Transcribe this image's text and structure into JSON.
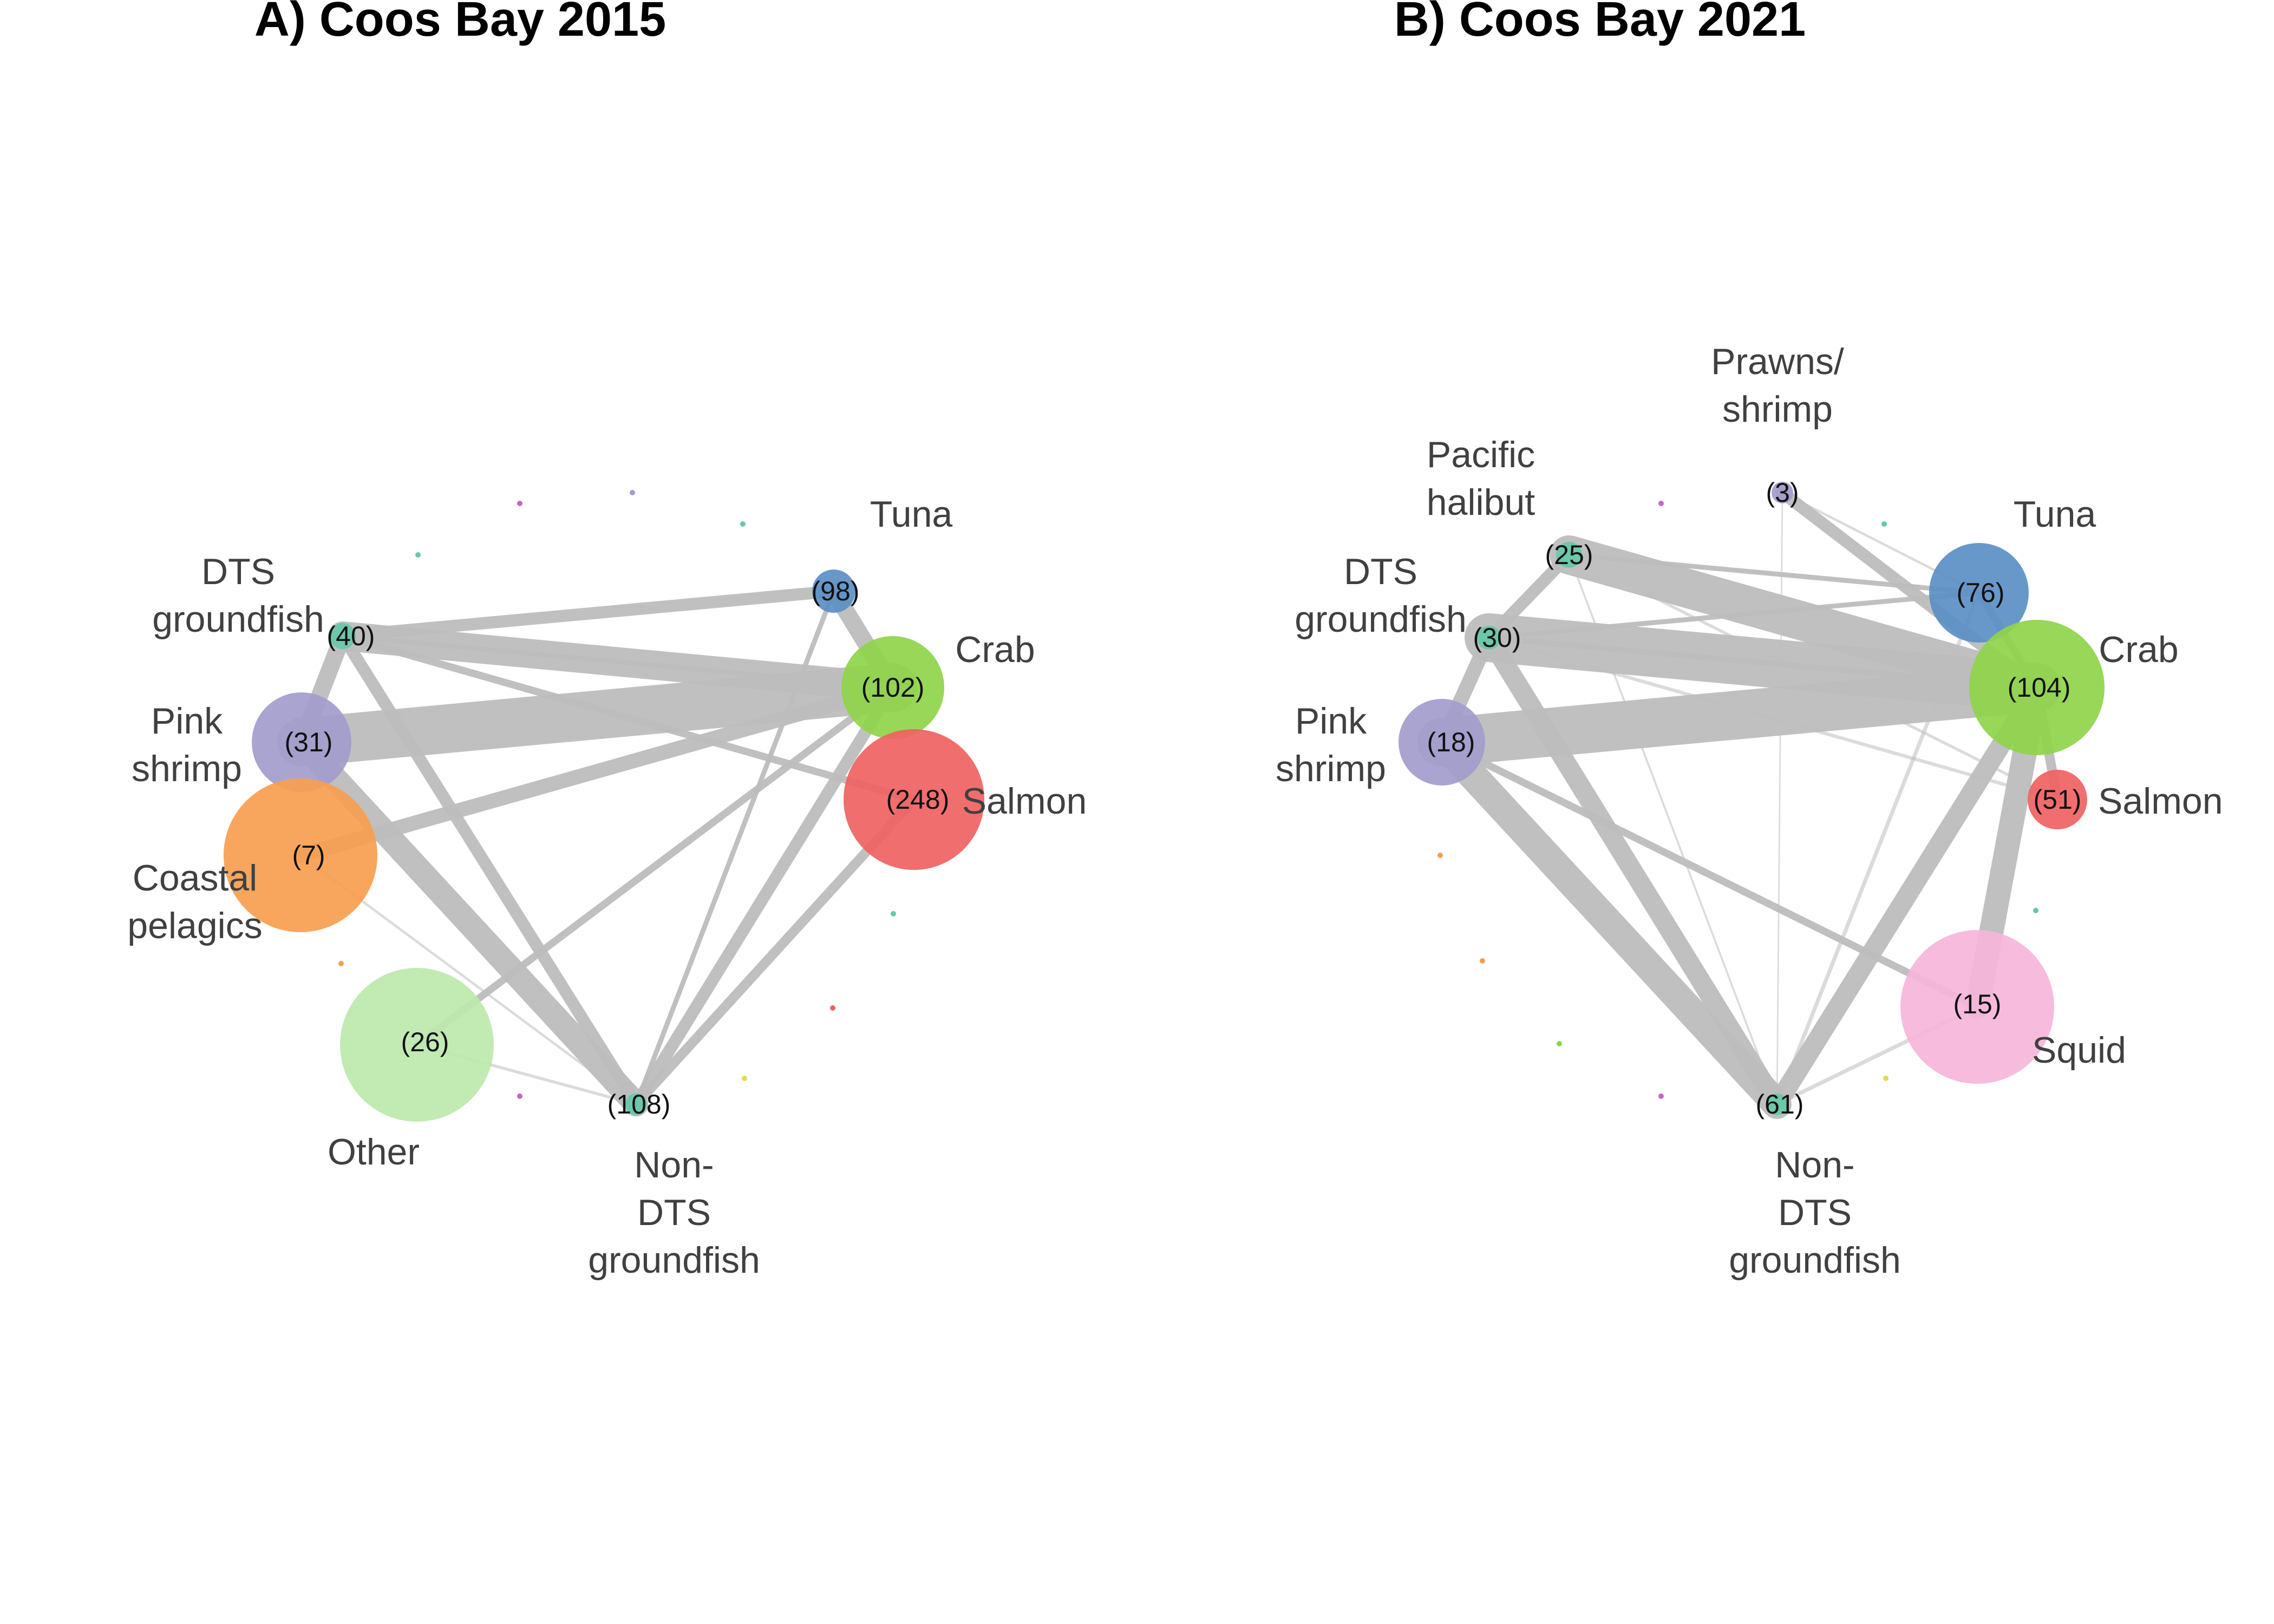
{
  "panels": [
    {
      "title": "A) Coos Bay 2015",
      "nodes": [
        {
          "id": "tuna",
          "label": [
            "Tuna"
          ],
          "value": "(98)",
          "color": "#5b8fc4"
        },
        {
          "id": "crab",
          "label": [
            "Crab"
          ],
          "value": "(102)",
          "color": "#8fd44a"
        },
        {
          "id": "salmon",
          "label": [
            "Salmon"
          ],
          "value": "(248)",
          "color": "#f06262"
        },
        {
          "id": "dts",
          "label": [
            "DTS",
            "groundfish"
          ],
          "value": "(40)",
          "color": "#66c8a8"
        },
        {
          "id": "pink",
          "label": [
            "Pink",
            "shrimp"
          ],
          "value": "(31)",
          "color": "#a39ccd"
        },
        {
          "id": "coastal",
          "label": [
            "Coastal",
            "pelagics"
          ],
          "value": "(7)",
          "color": "#f79e4f"
        },
        {
          "id": "other",
          "label": [
            "Other"
          ],
          "value": "(26)",
          "color": "#bde8ad"
        },
        {
          "id": "nondts",
          "label": [
            "Non-",
            "DTS",
            "groundfish"
          ],
          "value": "(108)",
          "color": "#66c8a8"
        }
      ],
      "edges": [
        {
          "source": "pink",
          "target": "crab",
          "weight": 10
        },
        {
          "source": "dts",
          "target": "crab",
          "weight": 6
        },
        {
          "source": "pink",
          "target": "nondts",
          "weight": 5
        },
        {
          "source": "tuna",
          "target": "crab",
          "weight": 3.5
        },
        {
          "source": "dts",
          "target": "pink",
          "weight": 3.5
        },
        {
          "source": "crab",
          "target": "coastal",
          "weight": 3
        },
        {
          "source": "dts",
          "target": "tuna",
          "weight": 2.5
        },
        {
          "source": "dts",
          "target": "nondts",
          "weight": 2.5
        },
        {
          "source": "crab",
          "target": "nondts",
          "weight": 2.5
        },
        {
          "source": "salmon",
          "target": "nondts",
          "weight": 2
        },
        {
          "source": "crab",
          "target": "other",
          "weight": 1.5
        },
        {
          "source": "dts",
          "target": "salmon",
          "weight": 1.5
        },
        {
          "source": "tuna",
          "target": "nondts",
          "weight": 1
        },
        {
          "source": "dts",
          "target": "crab",
          "weight": 1
        },
        {
          "source": "other",
          "target": "nondts",
          "weight": 0.6
        },
        {
          "source": "coastal",
          "target": "nondts",
          "weight": 0.5
        }
      ]
    },
    {
      "title": "B) Coos Bay 2021",
      "nodes": [
        {
          "id": "prawns",
          "label": [
            "Prawns/",
            "shrimp"
          ],
          "value": "(3)",
          "color": "#a39ccd"
        },
        {
          "id": "halibut",
          "label": [
            "Pacific",
            "halibut"
          ],
          "value": "(25)",
          "color": "#66c8a8"
        },
        {
          "id": "tuna",
          "label": [
            "Tuna"
          ],
          "value": "(76)",
          "color": "#5b8fc4"
        },
        {
          "id": "dts",
          "label": [
            "DTS",
            "groundfish"
          ],
          "value": "(30)",
          "color": "#66c8a8"
        },
        {
          "id": "crab",
          "label": [
            "Crab"
          ],
          "value": "(104)",
          "color": "#8fd44a"
        },
        {
          "id": "pink",
          "label": [
            "Pink",
            "shrimp"
          ],
          "value": "(18)",
          "color": "#a39ccd"
        },
        {
          "id": "salmon",
          "label": [
            "Salmon"
          ],
          "value": "(51)",
          "color": "#f06262"
        },
        {
          "id": "squid",
          "label": [
            "Squid"
          ],
          "value": "(15)",
          "color": "#f6b6da"
        },
        {
          "id": "nondts",
          "label": [
            "Non-",
            "DTS",
            "groundfish"
          ],
          "value": "(61)",
          "color": "#66c8a8"
        }
      ],
      "edges": [
        {
          "source": "pink",
          "target": "crab",
          "weight": 10
        },
        {
          "source": "dts",
          "target": "crab",
          "weight": 10
        },
        {
          "source": "halibut",
          "target": "crab",
          "weight": 8
        },
        {
          "source": "pink",
          "target": "nondts",
          "weight": 6
        },
        {
          "source": "crab",
          "target": "squid",
          "weight": 5
        },
        {
          "source": "dts",
          "target": "nondts",
          "weight": 4
        },
        {
          "source": "crab",
          "target": "nondts",
          "weight": 4
        },
        {
          "source": "dts",
          "target": "pink",
          "weight": 3
        },
        {
          "source": "halibut",
          "target": "dts",
          "weight": 2.5
        },
        {
          "source": "prawns",
          "target": "crab",
          "weight": 2.5
        },
        {
          "source": "crab",
          "target": "salmon",
          "weight": 2
        },
        {
          "source": "pink",
          "target": "squid",
          "weight": 1.5
        },
        {
          "source": "tuna",
          "target": "crab",
          "weight": 1.5
        },
        {
          "source": "dts",
          "target": "tuna",
          "weight": 1
        },
        {
          "source": "halibut",
          "target": "tuna",
          "weight": 1
        },
        {
          "source": "tuna",
          "target": "nondts",
          "weight": 0.8
        },
        {
          "source": "squid",
          "target": "nondts",
          "weight": 0.8
        },
        {
          "source": "dts",
          "target": "salmon",
          "weight": 0.7
        },
        {
          "source": "halibut",
          "target": "salmon",
          "weight": 0.6
        },
        {
          "source": "prawns",
          "target": "tuna",
          "weight": 0.5
        },
        {
          "source": "halibut",
          "target": "nondts",
          "weight": 0.4
        },
        {
          "source": "prawns",
          "target": "nondts",
          "weight": 0.3
        },
        {
          "source": "crab",
          "target": "dts",
          "weight": 1.2
        }
      ]
    }
  ]
}
